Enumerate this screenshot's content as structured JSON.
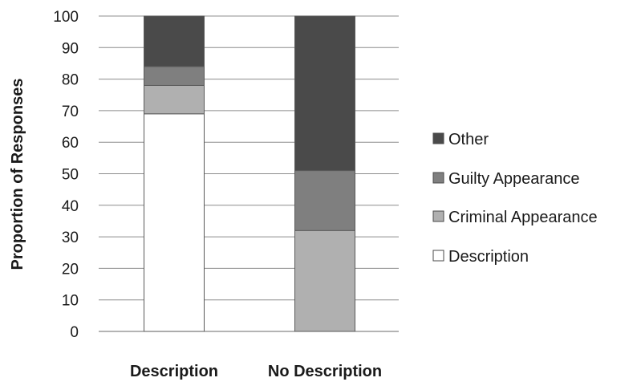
{
  "chart_data": {
    "type": "bar",
    "stacked": true,
    "title": "",
    "xlabel": "",
    "ylabel": "Proportion of Responses",
    "ylim": [
      0,
      100
    ],
    "yticks": [
      0,
      10,
      20,
      30,
      40,
      50,
      60,
      70,
      80,
      90,
      100
    ],
    "grid": true,
    "legend_position": "right",
    "categories": [
      "Description",
      "No Description"
    ],
    "series": [
      {
        "name": "Description",
        "values": [
          69,
          0
        ],
        "color": "#ffffff"
      },
      {
        "name": "Criminal Appearance",
        "values": [
          9,
          32
        ],
        "color": "#b0b0b0"
      },
      {
        "name": "Guilty Appearance",
        "values": [
          6,
          19
        ],
        "color": "#7f7f7f"
      },
      {
        "name": "Other",
        "values": [
          16,
          49
        ],
        "color": "#4a4a4a"
      }
    ],
    "legend_order": [
      "Other",
      "Guilty Appearance",
      "Criminal Appearance",
      "Description"
    ]
  }
}
